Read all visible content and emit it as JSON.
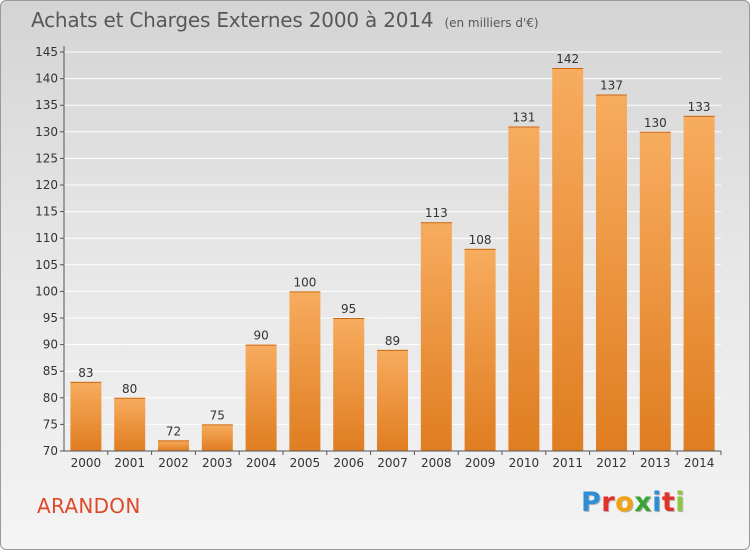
{
  "header": {
    "title": "Achats et Charges Externes 2000 à 2014",
    "subtitle": "(en milliers d'€)"
  },
  "footer": {
    "commune": "ARANDON",
    "logo": {
      "letters": [
        "P",
        "r",
        "o",
        "x",
        "i",
        "t",
        "i"
      ],
      "colors": [
        "#2c8fd6",
        "#e2312b",
        "#f2a10f",
        "#3aa535",
        "#2c8fd6",
        "#e2312b",
        "#8dc63f"
      ]
    }
  },
  "colors": {
    "bar_light": "#f7ac5e",
    "bar_dark": "#e07d21",
    "axis": "#555555",
    "grid": "#ffffff",
    "text": "#333333"
  },
  "chart_data": {
    "type": "bar",
    "categories": [
      "2000",
      "2001",
      "2002",
      "2003",
      "2004",
      "2005",
      "2006",
      "2007",
      "2008",
      "2009",
      "2010",
      "2011",
      "2012",
      "2013",
      "2014"
    ],
    "values": [
      83,
      80,
      72,
      75,
      90,
      100,
      95,
      89,
      113,
      108,
      131,
      142,
      137,
      130,
      133
    ],
    "title": "Achats et Charges Externes 2000 à 2014",
    "ylabel": "",
    "xlabel": "",
    "ylim": [
      70,
      145
    ],
    "yticks": [
      70,
      75,
      80,
      85,
      90,
      95,
      100,
      105,
      110,
      115,
      120,
      125,
      130,
      135,
      140,
      145
    ],
    "grid": true,
    "data_labels": true
  }
}
